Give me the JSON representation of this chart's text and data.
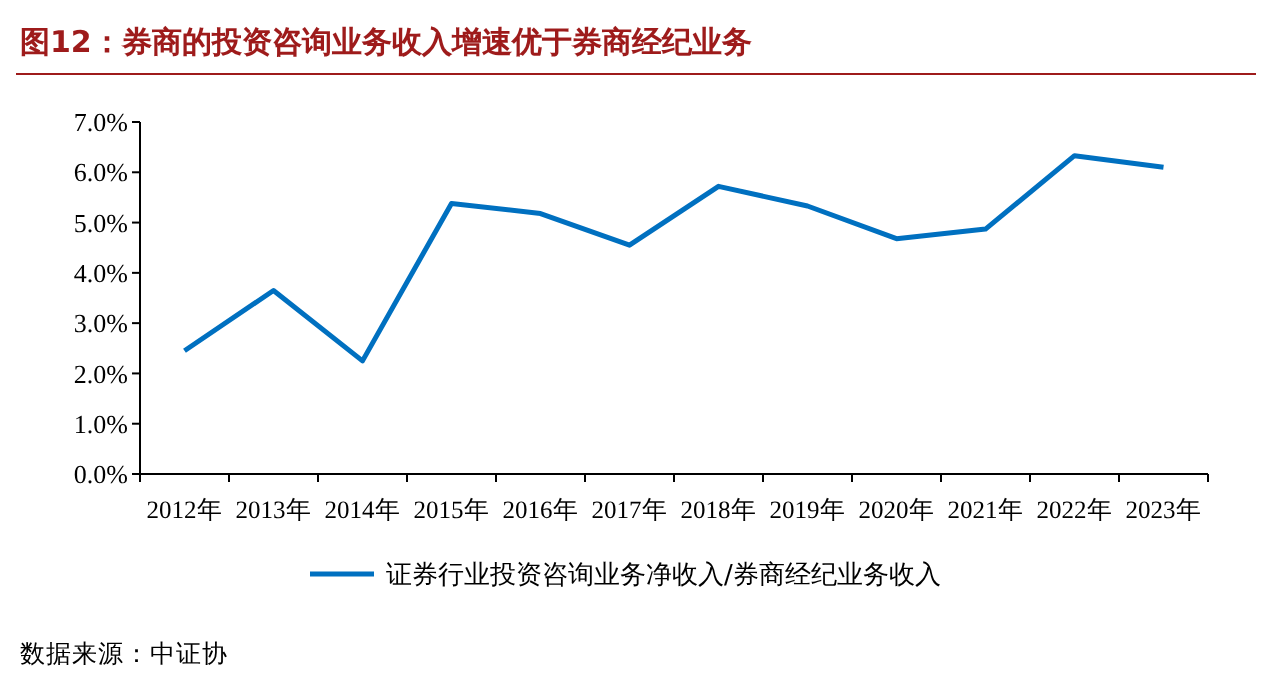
{
  "chart_data": {
    "type": "line",
    "title": "图12：券商的投资咨询业务收入增速优于券商经纪业务",
    "categories": [
      "2012年",
      "2013年",
      "2014年",
      "2015年",
      "2016年",
      "2017年",
      "2018年",
      "2019年",
      "2020年",
      "2021年",
      "2022年",
      "2023年"
    ],
    "series": [
      {
        "name": "证券行业投资咨询业务净收入/券商经纪业务收入",
        "color": "#0070c0",
        "values": [
          2.45,
          3.65,
          2.25,
          5.38,
          5.18,
          4.55,
          5.72,
          5.33,
          4.68,
          4.87,
          6.33,
          6.1
        ]
      }
    ],
    "ylim": [
      0,
      7
    ],
    "yticks": [
      {
        "value": 0,
        "label": "0.0%"
      },
      {
        "value": 1,
        "label": "1.0%"
      },
      {
        "value": 2,
        "label": "2.0%"
      },
      {
        "value": 3,
        "label": "3.0%"
      },
      {
        "value": 4,
        "label": "4.0%"
      },
      {
        "value": 5,
        "label": "5.0%"
      },
      {
        "value": 6,
        "label": "6.0%"
      },
      {
        "value": 7,
        "label": "7.0%"
      }
    ],
    "grid": false,
    "legend": "bottom",
    "marker": "none",
    "line_style": "solid",
    "annotations": [
      "数据来源：中证协"
    ]
  }
}
